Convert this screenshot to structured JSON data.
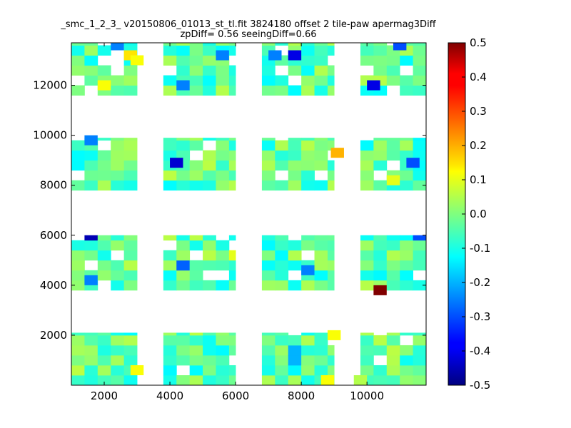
{
  "chart_data": {
    "type": "heatmap",
    "title_lines": [
      "_smc_1_2_3_ v20150806_01013_st_tl.fit 3824180 offset 2 tile-paw apermag3Diff",
      "zpDiff= 0.56 seeingDiff=0.66"
    ],
    "xlabel": "",
    "ylabel": "",
    "xlim": [
      1000,
      11800
    ],
    "ylim": [
      0,
      13700
    ],
    "x_ticks": [
      2000,
      4000,
      6000,
      8000,
      10000
    ],
    "y_ticks": [
      2000,
      4000,
      6000,
      8000,
      10000,
      12000
    ],
    "cell_size": [
      400,
      400
    ],
    "colorbar": {
      "colormap": "jet",
      "range": [
        -0.5,
        0.5
      ],
      "ticks": [
        "-0.5",
        "-0.4",
        "-0.3",
        "-0.2",
        "-0.1",
        "0.0",
        "0.1",
        "0.2",
        "0.3",
        "0.4",
        "0.5"
      ]
    },
    "blocks": [
      {
        "x_range": [
          1000,
          3000
        ],
        "y_range": [
          0,
          2100
        ]
      },
      {
        "x_range": [
          3800,
          6000
        ],
        "y_range": [
          0,
          2100
        ]
      },
      {
        "x_range": [
          6800,
          9000
        ],
        "y_range": [
          0,
          2100
        ]
      },
      {
        "x_range": [
          9800,
          11800
        ],
        "y_range": [
          0,
          2100
        ]
      },
      {
        "x_range": [
          1000,
          3000
        ],
        "y_range": [
          3800,
          6000
        ]
      },
      {
        "x_range": [
          3800,
          6000
        ],
        "y_range": [
          3800,
          6000
        ]
      },
      {
        "x_range": [
          6800,
          9000
        ],
        "y_range": [
          3800,
          6000
        ]
      },
      {
        "x_range": [
          9800,
          11800
        ],
        "y_range": [
          3800,
          6000
        ]
      },
      {
        "x_range": [
          1000,
          3000
        ],
        "y_range": [
          7800,
          9900
        ]
      },
      {
        "x_range": [
          3800,
          6000
        ],
        "y_range": [
          7800,
          9900
        ]
      },
      {
        "x_range": [
          6800,
          9000
        ],
        "y_range": [
          7800,
          9900
        ]
      },
      {
        "x_range": [
          9800,
          11800
        ],
        "y_range": [
          7800,
          9900
        ]
      },
      {
        "x_range": [
          1000,
          3000
        ],
        "y_range": [
          11600,
          13700
        ]
      },
      {
        "x_range": [
          3800,
          6000
        ],
        "y_range": [
          11600,
          13700
        ]
      },
      {
        "x_range": [
          6800,
          9000
        ],
        "y_range": [
          11600,
          13700
        ]
      },
      {
        "x_range": [
          9800,
          11800
        ],
        "y_range": [
          11600,
          13700
        ]
      }
    ],
    "special_cells": [
      {
        "x": 10200,
        "y": 3600,
        "value": 0.5
      },
      {
        "x": 8900,
        "y": 9100,
        "value": 0.2
      },
      {
        "x": 2600,
        "y": 13000,
        "value": 0.15
      },
      {
        "x": 2200,
        "y": 13400,
        "value": -0.25
      },
      {
        "x": 1400,
        "y": 5800,
        "value": -0.45
      },
      {
        "x": 4000,
        "y": 8700,
        "value": -0.42
      },
      {
        "x": 7600,
        "y": 13000,
        "value": -0.4
      },
      {
        "x": 10000,
        "y": 11800,
        "value": -0.4
      },
      {
        "x": 4200,
        "y": 4600,
        "value": -0.28
      },
      {
        "x": 4200,
        "y": 11800,
        "value": -0.25
      },
      {
        "x": 1400,
        "y": 4000,
        "value": -0.25
      },
      {
        "x": 1400,
        "y": 9600,
        "value": -0.25
      },
      {
        "x": 7000,
        "y": 13000,
        "value": -0.25
      },
      {
        "x": 10800,
        "y": 13400,
        "value": -0.3
      },
      {
        "x": 11400,
        "y": 5800,
        "value": -0.3
      },
      {
        "x": 8000,
        "y": 4400,
        "value": -0.25
      },
      {
        "x": 11200,
        "y": 8700,
        "value": -0.3
      },
      {
        "x": 5400,
        "y": 13000,
        "value": -0.25
      },
      {
        "x": 7600,
        "y": 1200,
        "value": -0.2
      },
      {
        "x": 7600,
        "y": 800,
        "value": -0.2
      },
      {
        "x": 2800,
        "y": 12800,
        "value": 0.12
      },
      {
        "x": 1800,
        "y": 11800,
        "value": 0.12
      },
      {
        "x": 8800,
        "y": 1800,
        "value": 0.12
      },
      {
        "x": 5800,
        "y": 5000,
        "value": 0.1
      },
      {
        "x": 8600,
        "y": 0,
        "value": 0.12
      },
      {
        "x": 2800,
        "y": 400,
        "value": 0.12
      },
      {
        "x": 9600,
        "y": 0,
        "value": 0.05
      },
      {
        "x": 10600,
        "y": 8000,
        "value": 0.1
      }
    ]
  }
}
